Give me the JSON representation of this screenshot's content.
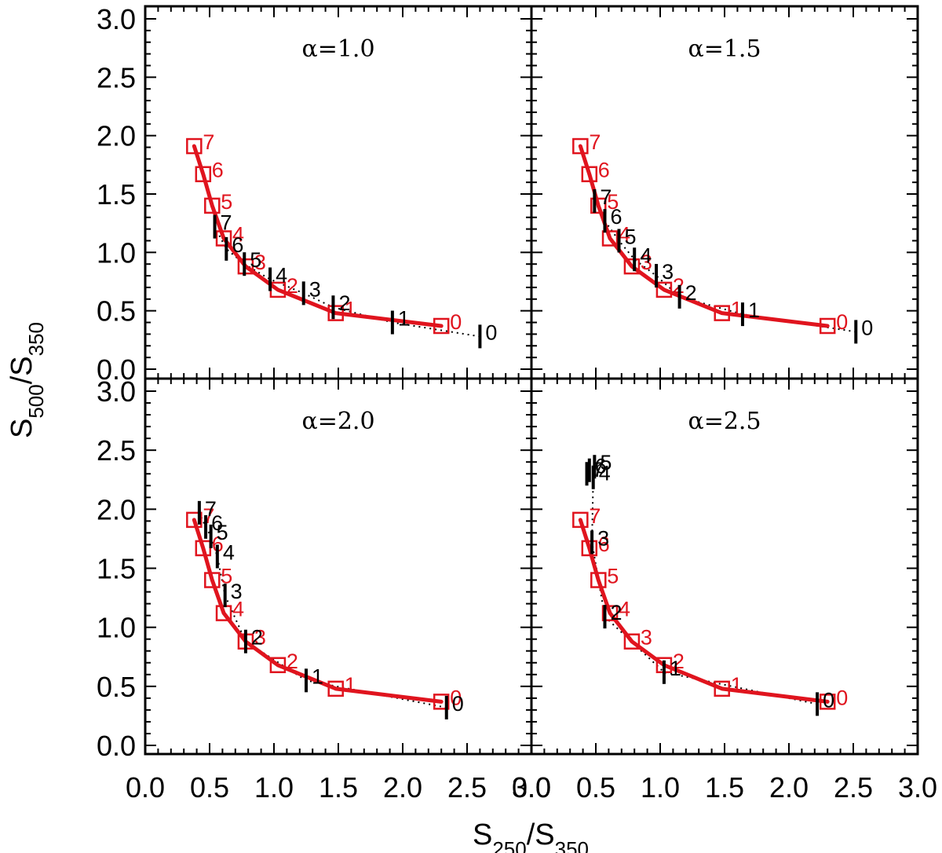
{
  "chart_data": {
    "type": "line",
    "xlabel": {
      "base": "S",
      "sub1": "250",
      "mid": "/S",
      "sub2": "350"
    },
    "ylabel": {
      "base": "S",
      "sub1": "500",
      "mid": "/S",
      "sub2": "350"
    },
    "xlim": [
      0.0,
      3.0
    ],
    "ylim": [
      0.0,
      3.0
    ],
    "x_ticks": [
      "0.0",
      "0.5",
      "1.0",
      "1.5",
      "2.0",
      "2.5",
      "3.0"
    ],
    "y_ticks": [
      "0.0",
      "0.5",
      "1.0",
      "1.5",
      "2.0",
      "2.5",
      "3.0"
    ],
    "colors": {
      "red": "#e0141e",
      "black": "#000000"
    },
    "red_curve": [
      {
        "label": "0",
        "x": 2.3,
        "y": 0.37
      },
      {
        "label": "1",
        "x": 1.48,
        "y": 0.48
      },
      {
        "label": "2",
        "x": 1.03,
        "y": 0.68
      },
      {
        "label": "3",
        "x": 0.78,
        "y": 0.88
      },
      {
        "label": "4",
        "x": 0.61,
        "y": 1.12
      },
      {
        "label": "5",
        "x": 0.52,
        "y": 1.4
      },
      {
        "label": "6",
        "x": 0.45,
        "y": 1.67
      },
      {
        "label": "7",
        "x": 0.38,
        "y": 1.91
      }
    ],
    "panels": [
      {
        "title": "α=1.0",
        "black_points": [
          {
            "label": "0",
            "x": 2.6,
            "y": 0.28
          },
          {
            "label": "1",
            "x": 1.92,
            "y": 0.4
          },
          {
            "label": "2",
            "x": 1.46,
            "y": 0.53
          },
          {
            "label": "3",
            "x": 1.23,
            "y": 0.65
          },
          {
            "label": "4",
            "x": 0.97,
            "y": 0.77
          },
          {
            "label": "5",
            "x": 0.77,
            "y": 0.9
          },
          {
            "label": "6",
            "x": 0.63,
            "y": 1.03
          },
          {
            "label": "7",
            "x": 0.54,
            "y": 1.22
          }
        ]
      },
      {
        "title": "α=1.5",
        "black_points": [
          {
            "label": "0",
            "x": 2.52,
            "y": 0.32
          },
          {
            "label": "1",
            "x": 1.64,
            "y": 0.47
          },
          {
            "label": "2",
            "x": 1.15,
            "y": 0.62
          },
          {
            "label": "3",
            "x": 0.97,
            "y": 0.8
          },
          {
            "label": "4",
            "x": 0.8,
            "y": 0.94
          },
          {
            "label": "5",
            "x": 0.68,
            "y": 1.1
          },
          {
            "label": "6",
            "x": 0.57,
            "y": 1.27
          },
          {
            "label": "7",
            "x": 0.49,
            "y": 1.44
          }
        ]
      },
      {
        "title": "α=2.0",
        "black_points": [
          {
            "label": "0",
            "x": 2.34,
            "y": 0.32
          },
          {
            "label": "1",
            "x": 1.25,
            "y": 0.55
          },
          {
            "label": "2",
            "x": 0.78,
            "y": 0.88
          },
          {
            "label": "3",
            "x": 0.62,
            "y": 1.27
          },
          {
            "label": "4",
            "x": 0.56,
            "y": 1.6
          },
          {
            "label": "5",
            "x": 0.51,
            "y": 1.77
          },
          {
            "label": "6",
            "x": 0.47,
            "y": 1.85
          },
          {
            "label": "7",
            "x": 0.42,
            "y": 1.97
          }
        ]
      },
      {
        "title": "α=2.5",
        "black_points": [
          {
            "label": "0",
            "x": 2.22,
            "y": 0.35
          },
          {
            "label": "1",
            "x": 1.03,
            "y": 0.62
          },
          {
            "label": "2",
            "x": 0.57,
            "y": 1.09
          },
          {
            "label": "3",
            "x": 0.47,
            "y": 1.72
          },
          {
            "label": "4",
            "x": 0.48,
            "y": 2.27
          },
          {
            "label": "5",
            "x": 0.49,
            "y": 2.36
          },
          {
            "label": "6",
            "x": 0.45,
            "y": 2.33
          },
          {
            "label": "7",
            "x": 0.43,
            "y": 2.3
          }
        ]
      }
    ]
  }
}
